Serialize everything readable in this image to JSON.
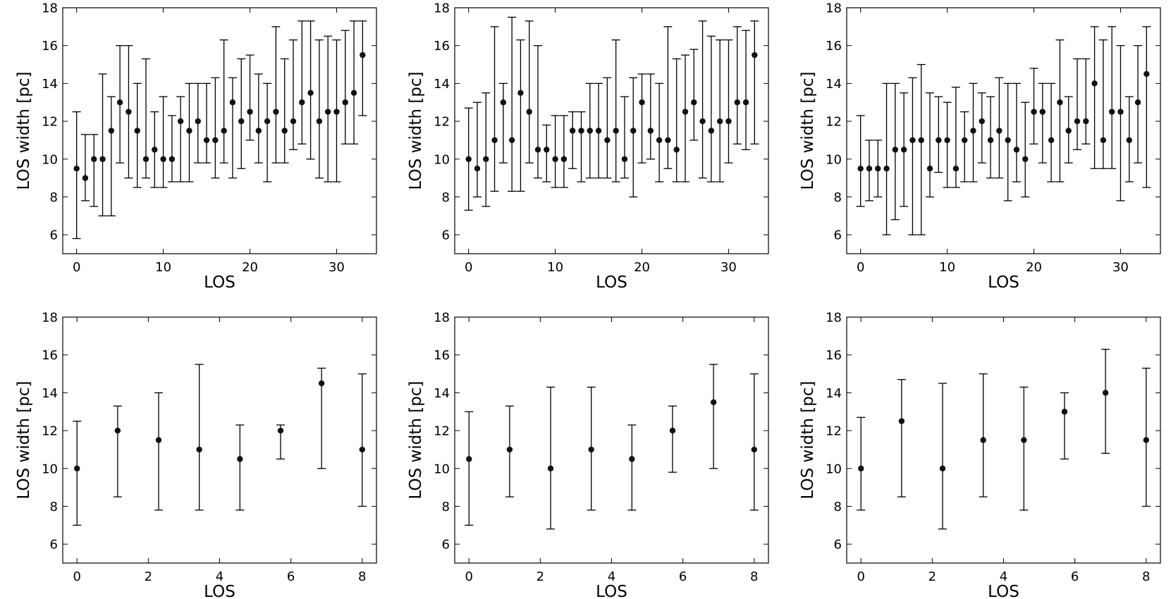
{
  "chart_data": [
    {
      "type": "scatter",
      "xlabel": "LOS",
      "ylabel": "LOS width [pc]",
      "xlim": [
        -1.6,
        34.6
      ],
      "ylim": [
        5,
        18
      ],
      "xticks": [
        0,
        10,
        20,
        30
      ],
      "yticks": [
        6,
        8,
        10,
        12,
        14,
        16,
        18
      ],
      "x": [
        0,
        1,
        2,
        3,
        4,
        5,
        6,
        7,
        8,
        9,
        10,
        11,
        12,
        13,
        14,
        15,
        16,
        17,
        18,
        19,
        20,
        21,
        22,
        23,
        24,
        25,
        26,
        27,
        28,
        29,
        30,
        31,
        32,
        33
      ],
      "y": [
        9.5,
        9,
        10,
        10,
        11.5,
        13,
        12.5,
        11.5,
        10,
        10.5,
        10,
        10,
        12,
        11.5,
        12,
        11,
        11,
        11.5,
        13,
        12,
        12.5,
        11.5,
        12,
        12.5,
        11.5,
        12,
        13,
        13.5,
        12,
        12.5,
        12.5,
        13,
        13.5,
        15.5
      ],
      "y_low": [
        5.8,
        7.8,
        7.5,
        7,
        7,
        9.8,
        9,
        8.5,
        9,
        8.5,
        8.5,
        8.8,
        8.8,
        8.8,
        9.8,
        9.8,
        9,
        9.8,
        9,
        9.5,
        11,
        9.8,
        8.8,
        9.8,
        9.8,
        10.5,
        10.8,
        10,
        9,
        8.8,
        8.8,
        10.8,
        10.8,
        12.3
      ],
      "y_high": [
        12.5,
        11.3,
        11.3,
        14.5,
        13.3,
        16,
        16,
        14,
        15.3,
        12.5,
        13.3,
        12.3,
        13.3,
        14,
        14,
        14,
        14.3,
        16.3,
        14.3,
        15.3,
        15.5,
        14.5,
        14,
        17,
        15.3,
        16.3,
        17.3,
        17.3,
        16.3,
        16.5,
        16.3,
        16.8,
        17.3,
        17.3
      ]
    },
    {
      "type": "scatter",
      "xlabel": "LOS",
      "ylabel": "LOS width [pc]",
      "xlim": [
        -1.6,
        34.6
      ],
      "ylim": [
        5,
        18
      ],
      "xticks": [
        0,
        10,
        20,
        30
      ],
      "yticks": [
        6,
        8,
        10,
        12,
        14,
        16,
        18
      ],
      "x": [
        0,
        1,
        2,
        3,
        4,
        5,
        6,
        7,
        8,
        9,
        10,
        11,
        12,
        13,
        14,
        15,
        16,
        17,
        18,
        19,
        20,
        21,
        22,
        23,
        24,
        25,
        26,
        27,
        28,
        29,
        30,
        31,
        32,
        33
      ],
      "y": [
        10,
        9.5,
        10,
        11,
        13,
        11,
        13.5,
        12.5,
        10.5,
        10.5,
        10,
        10,
        11.5,
        11.5,
        11.5,
        11.5,
        11,
        11.5,
        10,
        11.5,
        13,
        11.5,
        11,
        11,
        10.5,
        12.5,
        13,
        12,
        11.5,
        12,
        12,
        13,
        13,
        15.5
      ],
      "y_low": [
        7.3,
        8,
        7.5,
        8.3,
        9.8,
        8.3,
        8.3,
        9.8,
        9,
        8.8,
        8.5,
        8.5,
        9.5,
        8.8,
        9,
        9,
        9,
        8.8,
        9,
        8,
        9.8,
        10,
        8.8,
        9.5,
        8.8,
        8.8,
        11,
        9,
        8.8,
        8.8,
        9.8,
        10.8,
        10.5,
        10.8
      ],
      "y_high": [
        12.7,
        13,
        13.5,
        17,
        14,
        17.5,
        16.3,
        17.3,
        16,
        11.8,
        12.3,
        12.3,
        12.5,
        12.5,
        14,
        14,
        14.3,
        16.3,
        13.3,
        14.3,
        14.5,
        14.5,
        14,
        17,
        15.3,
        15.5,
        15.8,
        17.3,
        16.5,
        16.3,
        16.3,
        17,
        16.8,
        17.3
      ]
    },
    {
      "type": "scatter",
      "xlabel": "LOS",
      "ylabel": "LOS width [pc]",
      "xlim": [
        -1.6,
        34.6
      ],
      "ylim": [
        5,
        18
      ],
      "xticks": [
        0,
        10,
        20,
        30
      ],
      "yticks": [
        6,
        8,
        10,
        12,
        14,
        16,
        18
      ],
      "x": [
        0,
        1,
        2,
        3,
        4,
        5,
        6,
        7,
        8,
        9,
        10,
        11,
        12,
        13,
        14,
        15,
        16,
        17,
        18,
        19,
        20,
        21,
        22,
        23,
        24,
        25,
        26,
        27,
        28,
        29,
        30,
        31,
        32,
        33
      ],
      "y": [
        9.5,
        9.5,
        9.5,
        9.5,
        10.5,
        10.5,
        11,
        11,
        9.5,
        11,
        11,
        9.5,
        11,
        11.5,
        12,
        11,
        11.5,
        11,
        10.5,
        10,
        12.5,
        12.5,
        11,
        13,
        11.5,
        12,
        12,
        14,
        11,
        12.5,
        12.5,
        11,
        13,
        14.5
      ],
      "y_low": [
        7.5,
        7.8,
        8,
        6,
        6.8,
        7.5,
        6,
        6,
        8,
        9.3,
        8.5,
        8.5,
        8.8,
        8.8,
        9.8,
        9,
        9,
        7.8,
        8.8,
        8,
        10.8,
        9.8,
        8.8,
        8.8,
        9.8,
        10.5,
        10.8,
        9.5,
        9.5,
        9.5,
        7.8,
        8.8,
        9.8,
        8.5
      ],
      "y_high": [
        12.3,
        11,
        11,
        14,
        14,
        13.5,
        14.3,
        15,
        13.5,
        13.3,
        13,
        13.8,
        12.5,
        14,
        13.5,
        13.3,
        14.3,
        14,
        14,
        13,
        14.8,
        14,
        14,
        16.3,
        13.3,
        15.3,
        15.3,
        17,
        16.3,
        17,
        16,
        13.3,
        16,
        17
      ]
    },
    {
      "type": "scatter",
      "xlabel": "LOS",
      "ylabel": "LOS width [pc]",
      "xlim": [
        -0.4,
        8.4
      ],
      "ylim": [
        5,
        18
      ],
      "xticks": [
        0,
        2,
        4,
        6,
        8
      ],
      "yticks": [
        6,
        8,
        10,
        12,
        14,
        16,
        18
      ],
      "x": [
        0,
        1.14,
        2.29,
        3.43,
        4.57,
        5.71,
        6.86,
        8
      ],
      "y": [
        10,
        12,
        11.5,
        11,
        10.5,
        12,
        14.5,
        11
      ],
      "y_low": [
        7,
        8.5,
        7.8,
        7.8,
        7.8,
        10.5,
        10,
        8
      ],
      "y_high": [
        12.5,
        13.3,
        14,
        15.5,
        12.3,
        12.3,
        15.3,
        15
      ]
    },
    {
      "type": "scatter",
      "xlabel": "LOS",
      "ylabel": "LOS width [pc]",
      "xlim": [
        -0.4,
        8.4
      ],
      "ylim": [
        5,
        18
      ],
      "xticks": [
        0,
        2,
        4,
        6,
        8
      ],
      "yticks": [
        6,
        8,
        10,
        12,
        14,
        16,
        18
      ],
      "x": [
        0,
        1.14,
        2.29,
        3.43,
        4.57,
        5.71,
        6.86,
        8
      ],
      "y": [
        10.5,
        11,
        10,
        11,
        10.5,
        12,
        13.5,
        11
      ],
      "y_low": [
        7,
        8.5,
        6.8,
        7.8,
        7.8,
        9.8,
        10,
        7.8
      ],
      "y_high": [
        13,
        13.3,
        14.3,
        14.3,
        12.3,
        13.3,
        15.5,
        15
      ]
    },
    {
      "type": "scatter",
      "xlabel": "LOS",
      "ylabel": "LOS width [pc]",
      "xlim": [
        -0.4,
        8.4
      ],
      "ylim": [
        5,
        18
      ],
      "xticks": [
        0,
        2,
        4,
        6,
        8
      ],
      "yticks": [
        6,
        8,
        10,
        12,
        14,
        16,
        18
      ],
      "x": [
        0,
        1.14,
        2.29,
        3.43,
        4.57,
        5.71,
        6.86,
        8
      ],
      "y": [
        10,
        12.5,
        10,
        11.5,
        11.5,
        13,
        14,
        11.5
      ],
      "y_low": [
        7.8,
        8.5,
        6.8,
        8.5,
        7.8,
        10.5,
        10.8,
        8
      ],
      "y_high": [
        12.7,
        14.7,
        14.5,
        15,
        14.3,
        14,
        16.3,
        15.3
      ]
    }
  ]
}
